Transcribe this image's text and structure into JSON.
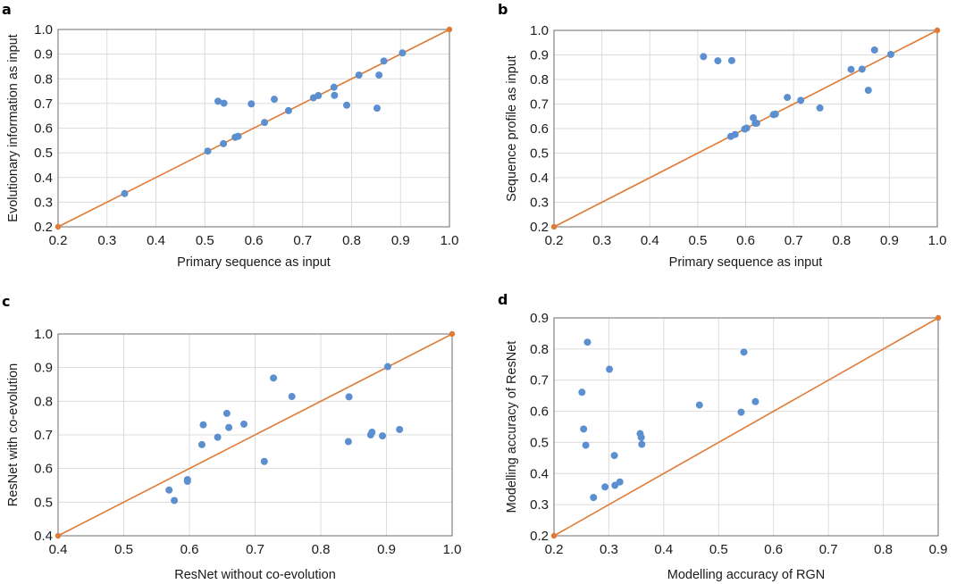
{
  "colors": {
    "points": "#5b8fcf",
    "diagonal": "#e07b35",
    "frame": "#6b6b6b",
    "grid": "#dcdcdc"
  },
  "chart_data": [
    {
      "panel": "a",
      "type": "scatter",
      "title": "",
      "xlabel": "Primary sequence as input",
      "ylabel": "Evolutionary information as input",
      "xlim": [
        0.2,
        1.0
      ],
      "ylim": [
        0.2,
        1.0
      ],
      "xticks": [
        "0.2",
        "0.3",
        "0.4",
        "0.5",
        "0.6",
        "0.7",
        "0.8",
        "0.9",
        "1.0"
      ],
      "yticks": [
        "0.2",
        "0.3",
        "0.4",
        "0.5",
        "0.6",
        "0.7",
        "0.8",
        "0.9",
        "1.0"
      ],
      "grid": true,
      "reference_line": {
        "from": [
          0.2,
          0.2
        ],
        "to": [
          1.0,
          1.0
        ]
      },
      "x": [
        0.336,
        0.506,
        0.538,
        0.562,
        0.568,
        0.527,
        0.539,
        0.595,
        0.642,
        0.622,
        0.671,
        0.722,
        0.732,
        0.764,
        0.765,
        0.79,
        0.815,
        0.852,
        0.856,
        0.866,
        0.904
      ],
      "y": [
        0.335,
        0.507,
        0.537,
        0.563,
        0.567,
        0.709,
        0.701,
        0.698,
        0.717,
        0.623,
        0.671,
        0.723,
        0.732,
        0.766,
        0.733,
        0.693,
        0.815,
        0.681,
        0.815,
        0.872,
        0.905
      ]
    },
    {
      "panel": "b",
      "type": "scatter",
      "title": "",
      "xlabel": "Primary sequence as input",
      "ylabel": "Sequence profile as input",
      "xlim": [
        0.2,
        1.0
      ],
      "ylim": [
        0.2,
        1.0
      ],
      "xticks": [
        "0.2",
        "0.3",
        "0.4",
        "0.5",
        "0.6",
        "0.7",
        "0.8",
        "0.9",
        "1.0"
      ],
      "yticks": [
        "0.2",
        "0.3",
        "0.4",
        "0.5",
        "0.6",
        "0.7",
        "0.8",
        "0.9",
        "1.0"
      ],
      "grid": true,
      "reference_line": {
        "from": [
          0.2,
          0.2
        ],
        "to": [
          1.0,
          1.0
        ]
      },
      "x": [
        0.512,
        0.542,
        0.571,
        0.569,
        0.578,
        0.598,
        0.602,
        0.616,
        0.62,
        0.623,
        0.658,
        0.662,
        0.687,
        0.715,
        0.755,
        0.82,
        0.843,
        0.856,
        0.869,
        0.903
      ],
      "y": [
        0.893,
        0.876,
        0.877,
        0.568,
        0.576,
        0.598,
        0.602,
        0.644,
        0.622,
        0.622,
        0.657,
        0.659,
        0.727,
        0.715,
        0.684,
        0.841,
        0.842,
        0.756,
        0.92,
        0.902
      ]
    },
    {
      "panel": "c",
      "type": "scatter",
      "title": "",
      "xlabel": "ResNet without co-evolution",
      "ylabel": "ResNet with co-evolution",
      "xlim": [
        0.4,
        1.0
      ],
      "ylim": [
        0.4,
        1.0
      ],
      "xticks": [
        "0.4",
        "0.5",
        "0.6",
        "0.7",
        "0.8",
        "0.9",
        "1.0"
      ],
      "yticks": [
        "0.4",
        "0.5",
        "0.6",
        "0.7",
        "0.8",
        "0.9",
        "1.0"
      ],
      "grid": true,
      "reference_line": {
        "from": [
          0.4,
          0.4
        ],
        "to": [
          1.0,
          1.0
        ]
      },
      "x": [
        0.569,
        0.577,
        0.597,
        0.597,
        0.619,
        0.621,
        0.643,
        0.657,
        0.66,
        0.683,
        0.714,
        0.728,
        0.756,
        0.843,
        0.842,
        0.876,
        0.878,
        0.894,
        0.902,
        0.92
      ],
      "y": [
        0.536,
        0.505,
        0.567,
        0.562,
        0.671,
        0.73,
        0.693,
        0.764,
        0.722,
        0.732,
        0.621,
        0.869,
        0.814,
        0.813,
        0.68,
        0.7,
        0.708,
        0.697,
        0.903,
        0.716
      ]
    },
    {
      "panel": "d",
      "type": "scatter",
      "title": "",
      "xlabel": "Modelling accuracy of RGN",
      "ylabel": "Modelling accuracy of ResNet",
      "xlim": [
        0.2,
        0.9
      ],
      "ylim": [
        0.2,
        0.9
      ],
      "xticks": [
        "0.2",
        "0.3",
        "0.4",
        "0.5",
        "0.6",
        "0.7",
        "0.8",
        "0.9"
      ],
      "yticks": [
        "0.2",
        "0.3",
        "0.4",
        "0.5",
        "0.6",
        "0.7",
        "0.8",
        "0.9"
      ],
      "grid": true,
      "reference_line": {
        "from": [
          0.2,
          0.2
        ],
        "to": [
          0.9,
          0.9
        ]
      },
      "x": [
        0.261,
        0.301,
        0.251,
        0.254,
        0.258,
        0.31,
        0.357,
        0.359,
        0.36,
        0.272,
        0.293,
        0.311,
        0.32,
        0.465,
        0.541,
        0.546,
        0.567
      ],
      "y": [
        0.822,
        0.735,
        0.661,
        0.543,
        0.491,
        0.458,
        0.528,
        0.516,
        0.494,
        0.323,
        0.357,
        0.362,
        0.373,
        0.62,
        0.597,
        0.79,
        0.631
      ]
    }
  ]
}
